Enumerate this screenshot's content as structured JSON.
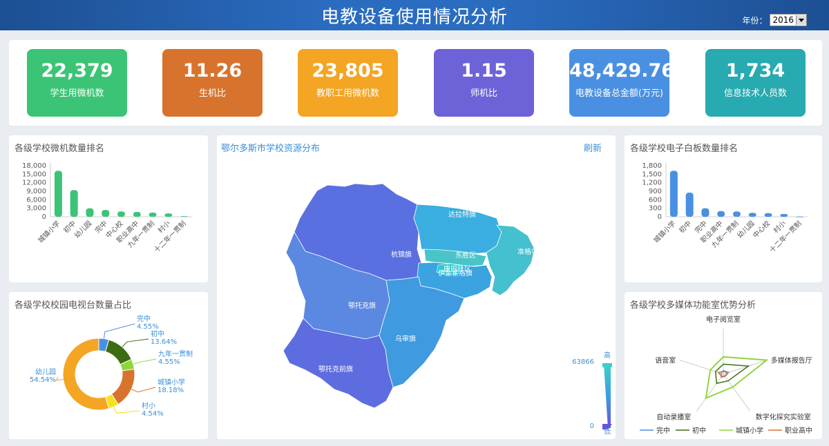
{
  "header": {
    "title": "电教设备使用情况分析",
    "year_label": "年份：",
    "year_value": "2016"
  },
  "kpis": [
    {
      "value": "22,379",
      "label": "学生用微机数",
      "color": "#3cc476"
    },
    {
      "value": "11.26",
      "label": "生机比",
      "color": "#d8732e"
    },
    {
      "value": "23,805",
      "label": "教职工用微机数",
      "color": "#f3a523"
    },
    {
      "value": "1.15",
      "label": "师机比",
      "color": "#6d62d8"
    },
    {
      "value": "48,429.76",
      "label": "电教设备总金额(万元)",
      "color": "#4a90e2"
    },
    {
      "value": "1,734",
      "label": "信息技术人员数",
      "color": "#27aab0"
    }
  ],
  "panels": {
    "computers": "各级学校微机数量排名",
    "map": "鄂尔多斯市学校资源分布",
    "refresh": "刷新",
    "whiteboard": "各级学校电子白板数量排名",
    "tv": "各级学校校园电视台数量占比",
    "radar": "各级学校多媒体功能室优势分析"
  },
  "map": {
    "regions": [
      "达拉特旗",
      "杭锦旗",
      "东胜区",
      "准格尔旗",
      "康巴什区",
      "伊金霍洛旗",
      "鄂托克旗",
      "乌审旗",
      "鄂托克前旗"
    ],
    "legend_high": "高",
    "legend_low": "低",
    "legend_max": "63866",
    "legend_min": "0"
  },
  "chart_data": [
    {
      "type": "bar",
      "title": "各级学校微机数量排名",
      "categories": [
        "城镇小学",
        "初中",
        "幼儿园",
        "完中",
        "中心校",
        "职业高中",
        "九年一贯制",
        "村小",
        "十二年一贯制"
      ],
      "values": [
        16200,
        9400,
        3000,
        2400,
        1900,
        1700,
        1500,
        1200,
        200
      ],
      "yticks": [
        "18,000",
        "15,000",
        "12,000",
        "9,000",
        "6,000",
        "3,000",
        "0"
      ],
      "ylim": [
        0,
        18000
      ],
      "color": "#3cc476"
    },
    {
      "type": "bar",
      "title": "各级学校电子白板数量排名",
      "categories": [
        "城镇小学",
        "初中",
        "完中",
        "职业高中",
        "九年一贯制",
        "幼儿园",
        "中心校",
        "村小",
        "十二年一贯制"
      ],
      "values": [
        1620,
        850,
        300,
        200,
        190,
        140,
        130,
        100,
        10
      ],
      "yticks": [
        "1,800",
        "1,500",
        "1,200",
        "900",
        "600",
        "300",
        "0"
      ],
      "ylim": [
        0,
        1800
      ],
      "color": "#4a90e2"
    },
    {
      "type": "pie",
      "title": "各级学校校园电视台数量占比",
      "slices": [
        {
          "name": "完中",
          "percent": "4.55%",
          "value": 4.55,
          "color": "#4a90e2"
        },
        {
          "name": "初中",
          "percent": "13.64%",
          "value": 13.64,
          "color": "#3b6e12"
        },
        {
          "name": "九年一贯制",
          "percent": "4.55%",
          "value": 4.55,
          "color": "#8ed73a"
        },
        {
          "name": "城镇小学",
          "percent": "18.18%",
          "value": 18.18,
          "color": "#d8732e"
        },
        {
          "name": "村小",
          "percent": "4.54%",
          "value": 4.54,
          "color": "#f5e21c"
        },
        {
          "name": "幼儿园",
          "percent": "54.54%",
          "value": 54.54,
          "color": "#f3a523"
        }
      ]
    },
    {
      "type": "radar",
      "title": "各级学校多媒体功能室优势分析",
      "indicators": [
        "电子阅览室",
        "多媒体报告厅",
        "数字化探究实验室",
        "自动录播室",
        "语音室"
      ],
      "series": [
        {
          "name": "完中",
          "color": "#4a90e2",
          "values": [
            0.08,
            0.12,
            0.06,
            0.08,
            0.05
          ]
        },
        {
          "name": "初中",
          "color": "#3b6e12",
          "values": [
            0.22,
            0.58,
            0.18,
            0.25,
            0.18
          ]
        },
        {
          "name": "城镇小学",
          "color": "#8ed73a",
          "values": [
            0.38,
            1.0,
            0.35,
            0.65,
            0.3
          ]
        },
        {
          "name": "职业高中",
          "color": "#d8732e",
          "values": [
            0.06,
            0.1,
            0.05,
            0.06,
            0.12
          ]
        }
      ]
    }
  ]
}
